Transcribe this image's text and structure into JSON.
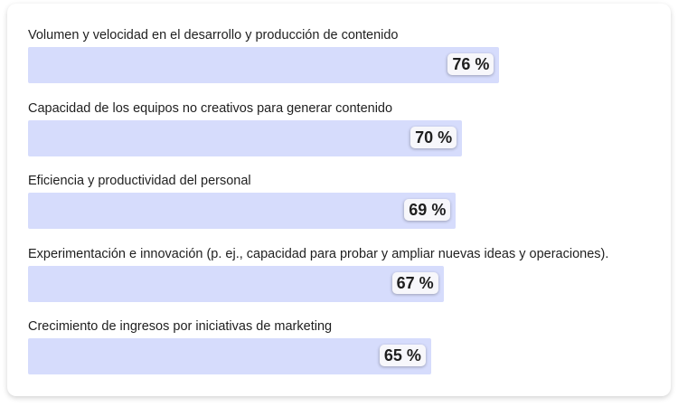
{
  "chart_data": {
    "type": "bar",
    "orientation": "horizontal",
    "categories": [
      "Volumen y velocidad en el desarrollo y producción de contenido",
      "Capacidad de los equipos no creativos para generar contenido",
      "Eficiencia y productividad del personal",
      "Experimentación e innovación (p. ej., capacidad para probar y ampliar nuevas ideas y operaciones).",
      "Crecimiento de ingresos por iniciativas de marketing"
    ],
    "values": [
      76,
      70,
      69,
      67,
      65
    ],
    "value_labels": [
      "76 %",
      "70 %",
      "69 %",
      "67 %",
      "65 %"
    ],
    "xlim": [
      0,
      100
    ],
    "grid": false,
    "bar_color": "#d6dcfc",
    "title": "",
    "xlabel": "",
    "ylabel": ""
  }
}
